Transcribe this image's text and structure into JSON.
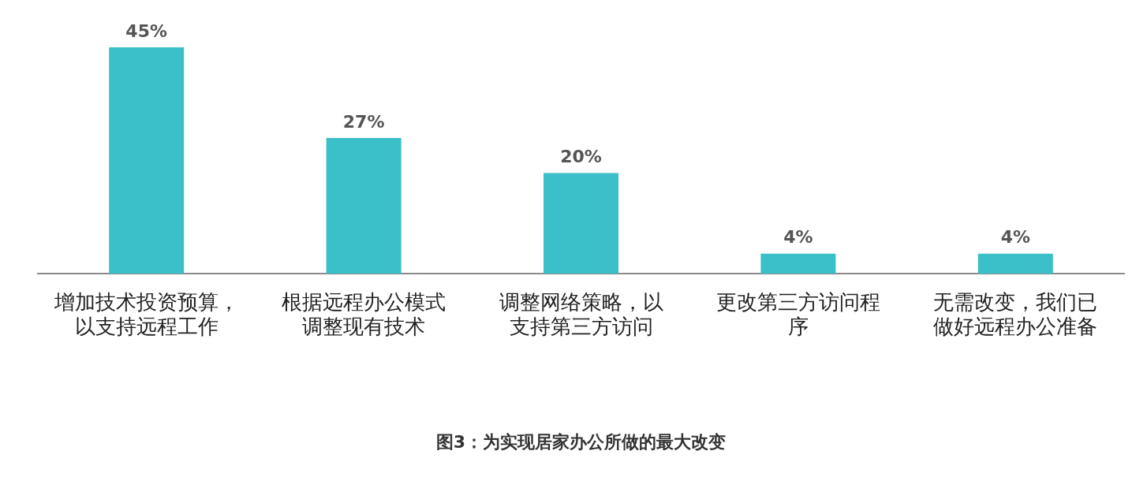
{
  "chart_data": {
    "type": "bar",
    "title": "图3：为实现居家办公所做的最大改变",
    "categories": [
      "增加技术投资预算，以支持远程工作",
      "根据远程办公模式调整现有技术",
      "调整网络策略，以支持第三方访问",
      "更改第三方访问程序",
      "无需改变，我们已做好远程办公准备"
    ],
    "values": [
      45,
      27,
      20,
      4,
      4
    ],
    "value_labels": [
      "45%",
      "27%",
      "20%",
      "4%",
      "4%"
    ],
    "color": "#3bbfc8",
    "grid": false,
    "legend": false
  }
}
